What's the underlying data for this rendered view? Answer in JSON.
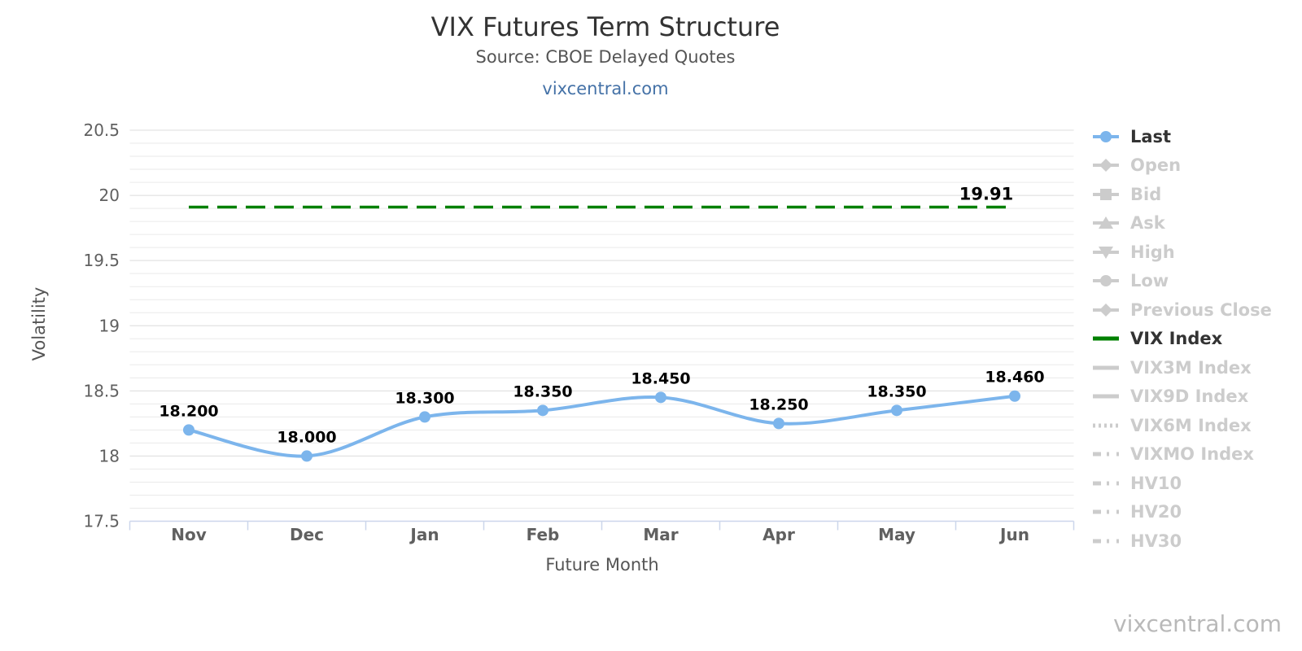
{
  "page": {
    "title": "VIX Futures Term Structure",
    "subtitle": "Source: CBOE Delayed Quotes",
    "link": "vixcentral.com",
    "watermark": "vixcentral.com"
  },
  "chart_data": {
    "type": "line",
    "title": "VIX Futures Term Structure",
    "subtitle": "Source: CBOE Delayed Quotes",
    "xlabel": "Future Month",
    "ylabel": "Volatility",
    "categories": [
      "Nov",
      "Dec",
      "Jan",
      "Feb",
      "Mar",
      "Apr",
      "May",
      "Jun"
    ],
    "ylim": [
      17.5,
      20.5
    ],
    "y_ticks": [
      "17.5",
      "18",
      "18.5",
      "19",
      "19.5",
      "20",
      "20.5"
    ],
    "minor_tick_interval": 0.1,
    "grid": true,
    "legend_position": "right",
    "series": [
      {
        "name": "Last",
        "type": "spline",
        "color": "#7cb5ec",
        "values": [
          18.2,
          18.0,
          18.3,
          18.35,
          18.45,
          18.25,
          18.35,
          18.46
        ],
        "data_labels": [
          "18.200",
          "18.000",
          "18.300",
          "18.350",
          "18.450",
          "18.250",
          "18.350",
          "18.460"
        ]
      },
      {
        "name": "VIX Index",
        "type": "dashed-hline",
        "color": "#008000",
        "value": 19.91,
        "label": "19.91"
      }
    ],
    "legend": [
      {
        "label": "Last",
        "marker": "circle",
        "active": true,
        "color": "#7cb5ec"
      },
      {
        "label": "Open",
        "marker": "diamond",
        "active": false,
        "color": "#cccccc"
      },
      {
        "label": "Bid",
        "marker": "square",
        "active": false,
        "color": "#cccccc"
      },
      {
        "label": "Ask",
        "marker": "triangle-up",
        "active": false,
        "color": "#cccccc"
      },
      {
        "label": "High",
        "marker": "triangle-down",
        "active": false,
        "color": "#cccccc"
      },
      {
        "label": "Low",
        "marker": "circle",
        "active": false,
        "color": "#cccccc"
      },
      {
        "label": "Previous Close",
        "marker": "diamond",
        "active": false,
        "color": "#cccccc"
      },
      {
        "label": "VIX Index",
        "marker": "line-solid",
        "active": true,
        "color": "#008000"
      },
      {
        "label": "VIX3M Index",
        "marker": "line-solid",
        "active": false,
        "color": "#cccccc"
      },
      {
        "label": "VIX9D Index",
        "marker": "line-solid",
        "active": false,
        "color": "#cccccc"
      },
      {
        "label": "VIX6M Index",
        "marker": "line-dotted",
        "active": false,
        "color": "#cccccc"
      },
      {
        "label": "VIXMO Index",
        "marker": "line-dashdot",
        "active": false,
        "color": "#cccccc"
      },
      {
        "label": "HV10",
        "marker": "line-dashdot",
        "active": false,
        "color": "#cccccc"
      },
      {
        "label": "HV20",
        "marker": "line-dashdot",
        "active": false,
        "color": "#cccccc"
      },
      {
        "label": "HV30",
        "marker": "line-dashdot",
        "active": false,
        "color": "#cccccc"
      }
    ],
    "colors": {
      "series_blue": "#7cb5ec",
      "series_green": "#008000",
      "grid_minor": "#eaeaea",
      "grid_major": "#dcdcdc",
      "axis_line": "#ccd6eb",
      "axis_label": "#606060",
      "data_label": "#000000",
      "legend_active_text": "#333333",
      "legend_inactive": "#cccccc"
    }
  }
}
